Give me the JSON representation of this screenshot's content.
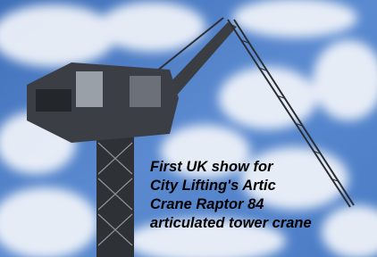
{
  "caption": {
    "lines": [
      "First UK show for",
      "City Lifting's Artic",
      "Crane Raptor 84",
      "articulated tower crane"
    ]
  }
}
